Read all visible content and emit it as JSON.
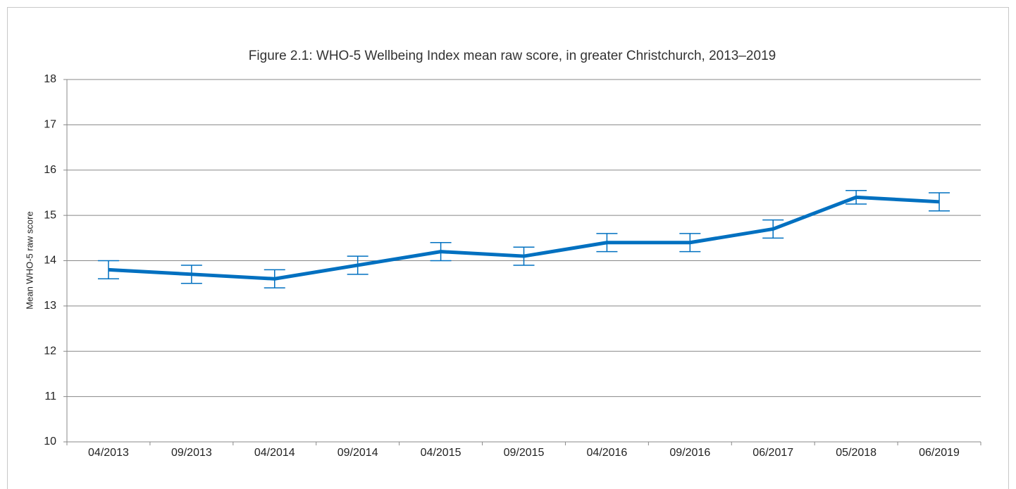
{
  "chart_data": {
    "type": "line",
    "title": "Figure 2.1: WHO-5 Wellbeing Index mean raw score, in greater Christchurch, 2013–2019",
    "y_label": "Mean WHO-5 raw score",
    "categories": [
      "04/2013",
      "09/2013",
      "04/2014",
      "09/2014",
      "04/2015",
      "09/2015",
      "04/2016",
      "09/2016",
      "06/2017",
      "05/2018",
      "06/2019"
    ],
    "values": [
      13.8,
      13.7,
      13.6,
      13.9,
      14.2,
      14.1,
      14.4,
      14.4,
      14.7,
      15.4,
      15.3
    ],
    "errors": [
      0.2,
      0.2,
      0.2,
      0.2,
      0.2,
      0.2,
      0.2,
      0.2,
      0.2,
      0.15,
      0.2
    ],
    "color": "#0070c0",
    "ylim": [
      10,
      18
    ],
    "yticks": [
      10,
      11,
      12,
      13,
      14,
      15,
      16,
      17,
      18
    ],
    "grid": true
  }
}
